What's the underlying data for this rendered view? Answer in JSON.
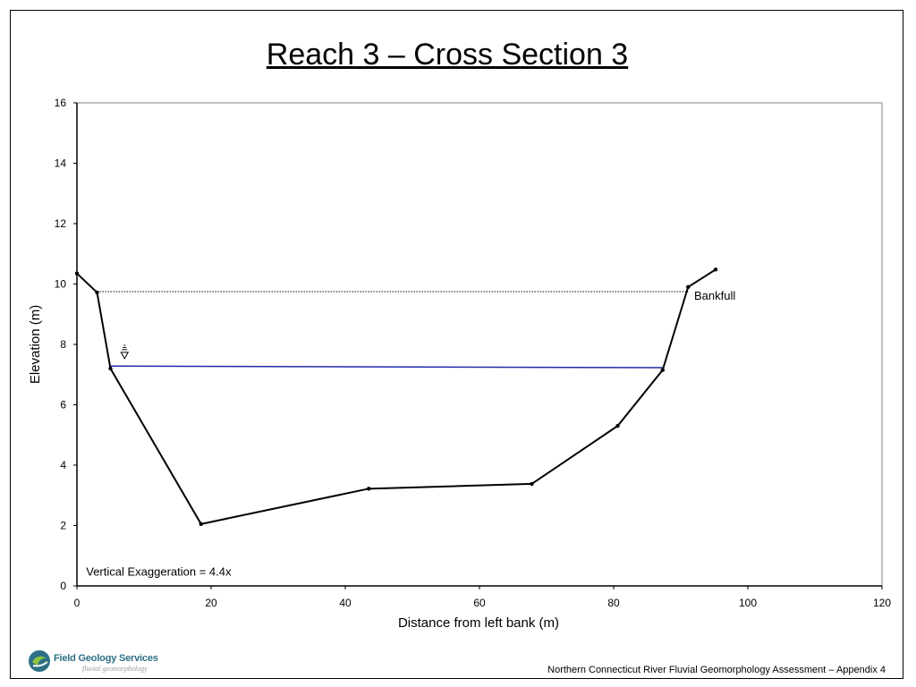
{
  "slide": {
    "title": "Reach 3 – Cross Section 3",
    "footer": "Northern Connecticut River Fluvial Geomorphology Assessment – Appendix 4",
    "logo": {
      "name": "Field Geology Services",
      "tagline": "fluvial geomorphology"
    }
  },
  "chart_data": {
    "type": "line",
    "title": "",
    "xlabel": "Distance from left bank (m)",
    "ylabel": "Elevation (m)",
    "xlim": [
      0,
      120
    ],
    "ylim": [
      0,
      16
    ],
    "xticks": [
      0,
      20,
      40,
      60,
      80,
      100,
      120
    ],
    "yticks": [
      0,
      2,
      4,
      6,
      8,
      10,
      12,
      14,
      16
    ],
    "grid": false,
    "series": [
      {
        "name": "",
        "color": "#000000",
        "style": "solid-with-markers",
        "x": [
          0,
          3,
          5,
          18.5,
          43.5,
          67.8,
          80.6,
          87.3,
          91.1,
          95.2
        ],
        "y": [
          10.35,
          9.72,
          7.2,
          2.05,
          3.22,
          3.38,
          5.3,
          7.15,
          9.9,
          10.48
        ]
      },
      {
        "name": "",
        "color": "#1f2ca8",
        "style": "solid",
        "x": [
          5,
          87.3
        ],
        "y": [
          7.28,
          7.23
        ]
      },
      {
        "name": "",
        "color": "#000000",
        "style": "dotted",
        "x": [
          3,
          91.1
        ],
        "y": [
          9.75,
          9.75
        ]
      }
    ],
    "annotations": [
      {
        "text": "Bankfull",
        "x": 92.0,
        "y": 9.6
      },
      {
        "text": "Vertical Exaggeration = 4.4x",
        "x": 1.5,
        "y": 0.4
      }
    ],
    "water_symbol": {
      "x": 7.1,
      "y": 7.65
    }
  }
}
